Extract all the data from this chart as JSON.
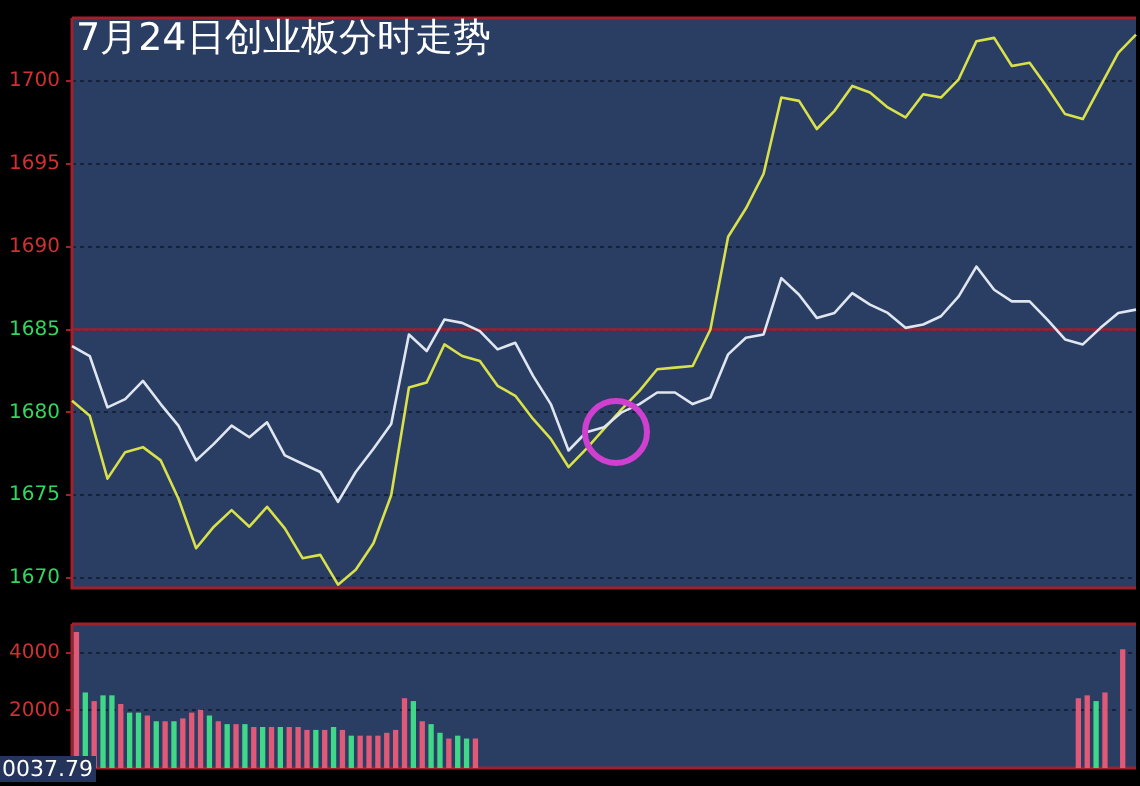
{
  "chart_data": [
    {
      "type": "line",
      "title": "7月24日创业板分时走势",
      "categories": [
        null,
        null,
        null,
        null,
        null,
        null,
        null,
        null,
        null,
        null,
        null,
        null,
        null,
        null,
        null,
        null,
        null,
        null,
        null,
        null,
        null,
        null,
        null,
        null,
        null,
        null,
        null,
        null,
        null,
        null,
        null,
        null,
        null,
        null,
        null,
        null,
        null,
        null,
        null,
        null,
        null,
        null,
        null,
        null,
        null,
        null,
        null,
        null,
        null,
        null,
        null,
        null,
        null,
        null,
        null,
        null,
        null,
        null,
        null,
        null,
        null
      ],
      "ylim": [
        1669.4,
        1703.8
      ],
      "yticks": [
        1670,
        1675,
        1680,
        1685,
        1690,
        1695,
        1700
      ],
      "tick_labels": "y",
      "grid": "y",
      "legend": false,
      "marker": "none",
      "line_style": "solid",
      "ref_lines": [
        {
          "axis": "y",
          "value": 1685,
          "color": "#a0202c"
        }
      ],
      "series": [
        {
          "color": "#dfe6f0",
          "values": [
            1684.0,
            1683.4,
            1680.3,
            1680.8,
            1681.9,
            1680.5,
            1679.2,
            1677.1,
            1678.1,
            1679.2,
            1678.5,
            1679.4,
            1677.4,
            1676.9,
            1676.4,
            1674.6,
            1676.4,
            1677.8,
            1679.3,
            1684.7,
            1683.7,
            1685.6,
            1685.4,
            1684.9,
            1683.8,
            1684.2,
            1682.2,
            1680.5,
            1677.7,
            1678.8,
            1679.1,
            1680.0,
            1680.5,
            1681.2,
            1681.2,
            1680.5,
            1680.9,
            1683.5,
            1684.5,
            1684.7,
            1688.1,
            1687.1,
            1685.7,
            1686.0,
            1687.2,
            1686.5,
            1686.0,
            1685.1,
            1685.3,
            1685.8,
            1687.0,
            1688.8,
            1687.4,
            1686.7,
            1686.7,
            1685.6,
            1684.4,
            1684.1,
            1685.1,
            1686.0,
            1686.2
          ]
        },
        {
          "color": "#d8e04a",
          "values": [
            1680.7,
            1679.8,
            1676.0,
            1677.6,
            1677.9,
            1677.1,
            1674.8,
            1671.8,
            1673.1,
            1674.1,
            1673.1,
            1674.3,
            1673.0,
            1671.2,
            1671.4,
            1669.6,
            1670.5,
            1672.1,
            1675.0,
            1681.5,
            1681.8,
            1684.1,
            1683.4,
            1683.1,
            1681.6,
            1681.0,
            1679.6,
            1678.4,
            1676.7,
            1677.8,
            1679.0,
            1680.2,
            1681.3,
            1682.6,
            1682.7,
            1682.8,
            1685.0,
            1690.6,
            1692.3,
            1694.4,
            1699.0,
            1698.8,
            1697.1,
            1698.2,
            1699.7,
            1699.3,
            1698.4,
            1697.8,
            1699.2,
            1699.0,
            1700.1,
            1702.4,
            1702.6,
            1700.9,
            1701.1,
            1699.6,
            1698.0,
            1697.7,
            1699.7,
            1701.7,
            1702.8
          ]
        }
      ]
    },
    {
      "type": "bar",
      "ylim": [
        0,
        5000
      ],
      "yticks": [
        2000,
        4000
      ],
      "tick_labels": "y",
      "grid": "y",
      "legend": false,
      "annotations": [
        "0037.79"
      ],
      "categories": [
        null,
        null,
        null,
        null,
        null,
        null,
        null,
        null,
        null,
        null,
        null,
        null,
        null,
        null,
        null,
        null,
        null,
        null,
        null,
        null,
        null,
        null,
        null,
        null,
        null,
        null,
        null,
        null,
        null,
        null,
        null,
        null,
        null,
        null,
        null,
        null,
        null,
        null,
        null,
        null,
        null,
        null,
        null,
        null,
        null,
        null,
        null,
        null,
        null,
        null,
        null,
        null,
        null,
        null,
        null,
        null,
        null,
        null,
        null,
        null,
        null,
        null,
        null,
        null,
        null,
        null,
        null,
        null,
        null,
        null,
        null,
        null,
        null,
        null,
        null,
        null,
        null,
        null,
        null,
        null,
        null,
        null,
        null,
        null,
        null,
        null,
        null,
        null,
        null,
        null,
        null,
        null,
        null,
        null,
        null,
        null,
        null,
        null,
        null,
        null,
        null,
        null,
        null,
        null,
        null,
        null,
        null,
        null,
        null,
        null,
        null,
        null,
        null,
        null,
        null,
        null,
        null,
        null,
        null,
        null
      ],
      "values": [
        4700,
        2600,
        2300,
        2500,
        2500,
        2200,
        1900,
        1900,
        1800,
        1600,
        1600,
        1600,
        1700,
        1900,
        2000,
        1800,
        1600,
        1500,
        1500,
        1500,
        1400,
        1400,
        1400,
        1400,
        1400,
        1400,
        1300,
        1300,
        1300,
        1400,
        1300,
        1100,
        1100,
        1100,
        1100,
        1200,
        1300,
        2400,
        2300,
        1600,
        1500,
        1200,
        1000,
        1100,
        1000,
        1000,
        null,
        null,
        null,
        null,
        null,
        null,
        null,
        null,
        null,
        null,
        null,
        null,
        null,
        null,
        null,
        null,
        null,
        null,
        null,
        null,
        null,
        null,
        null,
        null,
        null,
        null,
        null,
        null,
        null,
        null,
        null,
        null,
        null,
        null,
        null,
        null,
        null,
        null,
        null,
        null,
        null,
        null,
        null,
        null,
        null,
        null,
        null,
        null,
        null,
        null,
        null,
        null,
        null,
        null,
        null,
        null,
        null,
        null,
        null,
        null,
        null,
        null,
        null,
        null,
        null,
        null,
        null,
        2400,
        2500,
        2300,
        2600,
        null,
        4100,
        null
      ],
      "colors": [
        "#e05a78",
        "#40d888",
        "#e05a78",
        "#40d888",
        "#40d888",
        "#e05a78",
        "#40d888",
        "#40d888",
        "#e05a78",
        "#40d888",
        "#e05a78",
        "#40d888",
        "#e05a78",
        "#e05a78",
        "#e05a78",
        "#40d888",
        "#e05a78",
        "#40d888",
        "#e05a78",
        "#40d888",
        "#e05a78",
        "#40d888",
        "#e05a78",
        "#40d888",
        "#e05a78",
        "#e05a78",
        "#e05a78",
        "#40d888",
        "#e05a78",
        "#40d888",
        "#e05a78",
        "#40d888",
        "#e05a78",
        "#e05a78",
        "#e05a78",
        "#e05a78",
        "#e05a78",
        "#e05a78",
        "#40d888",
        "#e05a78",
        "#40d888",
        "#40d888",
        "#e05a78",
        "#40d888",
        "#40d888",
        "#e05a78",
        null,
        null,
        null,
        null,
        null,
        null,
        null,
        null,
        null,
        null,
        null,
        null,
        null,
        null,
        null,
        null,
        null,
        null,
        null,
        null,
        null,
        null,
        null,
        null,
        null,
        null,
        null,
        null,
        null,
        null,
        null,
        null,
        null,
        null,
        null,
        null,
        null,
        null,
        null,
        null,
        null,
        null,
        null,
        null,
        null,
        null,
        null,
        null,
        null,
        null,
        null,
        null,
        null,
        null,
        null,
        null,
        null,
        null,
        null,
        null,
        null,
        null,
        null,
        null,
        null,
        null,
        null,
        "#e05a78",
        "#e05a78",
        "#40d888",
        "#e05a78",
        null,
        "#e05a78",
        null
      ]
    }
  ]
}
